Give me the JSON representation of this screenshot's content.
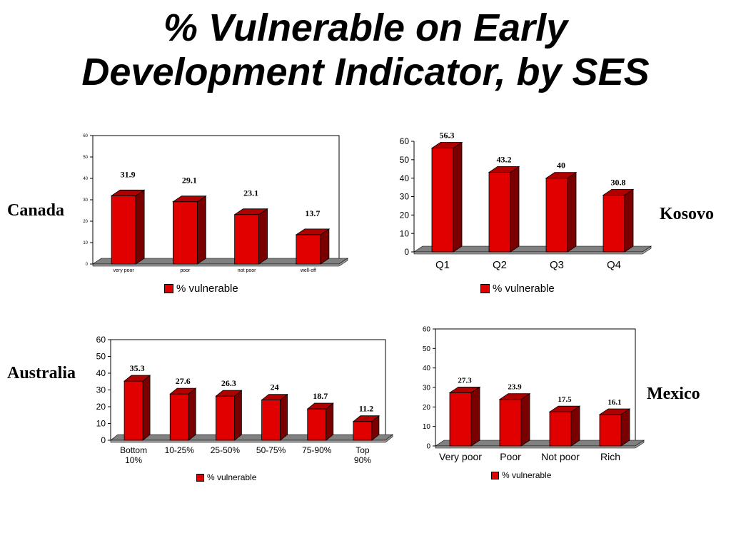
{
  "slide": {
    "title_line1": "% Vulnerable on Early",
    "title_line2": "Development Indicator, by SES"
  },
  "colors": {
    "bar_front": "#e00000",
    "bar_side": "#7a0000",
    "bar_top": "#b00000",
    "floor": "#808080"
  },
  "chart_data": [
    {
      "id": "canada",
      "type": "bar",
      "region_label": "Canada",
      "categories": [
        "very poor",
        "poor",
        "not poor",
        "well-off"
      ],
      "series": [
        {
          "name": "% vulnerable",
          "values": [
            31.9,
            29.1,
            23.1,
            13.7
          ]
        }
      ],
      "data_labels": [
        "31.9",
        "29.1",
        "23.1",
        "13.7"
      ],
      "yticks": [
        "0",
        "10",
        "20",
        "30",
        "40",
        "50",
        "60"
      ],
      "ylim": [
        0,
        60
      ],
      "legend": "bottom",
      "title": "",
      "xlabel": "",
      "ylabel": ""
    },
    {
      "id": "kosovo",
      "type": "bar",
      "region_label": "Kosovo",
      "categories": [
        "Q1",
        "Q2",
        "Q3",
        "Q4"
      ],
      "series": [
        {
          "name": "% vulnerable",
          "values": [
            56.3,
            43.2,
            40,
            30.8
          ]
        }
      ],
      "data_labels": [
        "56.3",
        "43.2",
        "40",
        "30.8"
      ],
      "yticks": [
        "0",
        "10",
        "20",
        "30",
        "40",
        "50",
        "60"
      ],
      "ylim": [
        0,
        60
      ],
      "legend": "bottom",
      "title": "",
      "xlabel": "",
      "ylabel": ""
    },
    {
      "id": "australia",
      "type": "bar",
      "region_label": "Australia",
      "categories": [
        "Bottom 10%",
        "10-25%",
        "25-50%",
        "50-75%",
        "75-90%",
        "Top 90%"
      ],
      "series": [
        {
          "name": "% vulnerable",
          "values": [
            35.3,
            27.6,
            26.3,
            24,
            18.7,
            11.2
          ]
        }
      ],
      "data_labels": [
        "35.3",
        "27.6",
        "26.3",
        "24",
        "18.7",
        "11.2"
      ],
      "yticks": [
        "0",
        "10",
        "20",
        "30",
        "40",
        "50",
        "60"
      ],
      "ylim": [
        0,
        60
      ],
      "legend": "bottom",
      "title": "",
      "xlabel": "",
      "ylabel": ""
    },
    {
      "id": "mexico",
      "type": "bar",
      "region_label": "Mexico",
      "categories": [
        "Very poor",
        "Poor",
        "Not poor",
        "Rich"
      ],
      "series": [
        {
          "name": "% vulnerable",
          "values": [
            27.3,
            23.9,
            17.5,
            16.1
          ]
        }
      ],
      "data_labels": [
        "27.3",
        "23.9",
        "17.5",
        "16.1"
      ],
      "yticks": [
        "0",
        "10",
        "20",
        "30",
        "40",
        "50",
        "60"
      ],
      "ylim": [
        0,
        60
      ],
      "legend": "bottom",
      "title": "",
      "xlabel": "",
      "ylabel": ""
    }
  ]
}
